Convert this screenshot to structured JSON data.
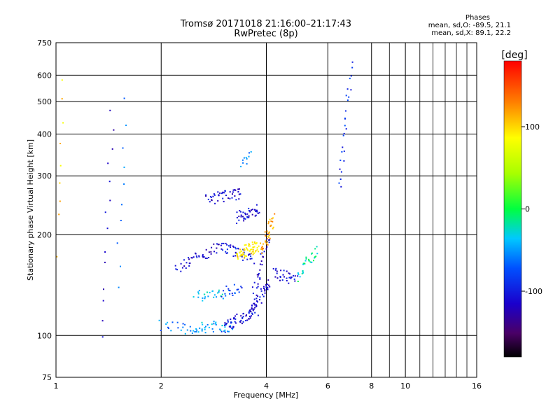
{
  "chart_data": {
    "type": "scatter",
    "title": "Tromsø 20171018 21:16:00–21:17:43",
    "subtitle": "RwPretec (8p)",
    "xlabel": "Frequency [MHz]",
    "ylabel": "Stationary phase Virtual Height [km]",
    "x_scale": "log",
    "y_scale": "log",
    "xlim": [
      1,
      16
    ],
    "ylim": [
      75,
      750
    ],
    "x_ticks": [
      "1",
      "2",
      "4",
      "6",
      "8",
      "10",
      "16"
    ],
    "y_ticks": [
      "75",
      "100",
      "200",
      "300",
      "400",
      "500",
      "600",
      "750"
    ],
    "grid": true,
    "legend_position": "top-right",
    "phase_legend": {
      "heading": "Phases",
      "line_o": "mean, sd,O: -89.5, 21.1",
      "line_x": "mean, sd,X:  89.1, 22.2"
    },
    "colorbar": {
      "label": "[deg]",
      "range": [
        -180,
        180
      ],
      "ticks": [
        "100",
        "0",
        "-100"
      ]
    },
    "traces": [
      {
        "f_range": [
          2.0,
          2.45
        ],
        "h": [
          108,
          103
        ],
        "phase": -60,
        "n": 18
      },
      {
        "f_range": [
          2.45,
          3.2
        ],
        "h": [
          106,
          106
        ],
        "phase": -45,
        "n": 40
      },
      {
        "f_range": [
          3.0,
          3.75
        ],
        "h": [
          106,
          118
        ],
        "phase": -105,
        "n": 55
      },
      {
        "f_range": [
          3.55,
          4.1
        ],
        "h": [
          115,
          145
        ],
        "phase": -110,
        "n": 45
      },
      {
        "f_range": [
          3.7,
          4.05
        ],
        "h": [
          135,
          200
        ],
        "phase": -115,
        "n": 30
      },
      {
        "f_range": [
          2.2,
          3.0
        ],
        "h": [
          160,
          185
        ],
        "phase": -115,
        "n": 45
      },
      {
        "f_range": [
          3.0,
          3.65
        ],
        "h": [
          185,
          170
        ],
        "phase": -100,
        "n": 40
      },
      {
        "f_range": [
          3.3,
          3.8
        ],
        "h": [
          175,
          185
        ],
        "phase": 95,
        "n": 60
      },
      {
        "f_range": [
          3.85,
          4.2
        ],
        "h": [
          175,
          225
        ],
        "phase": 115,
        "n": 40
      },
      {
        "f_range": [
          2.7,
          3.4
        ],
        "h": [
          255,
          265
        ],
        "phase": -110,
        "n": 45
      },
      {
        "f_range": [
          3.3,
          3.8
        ],
        "h": [
          225,
          240
        ],
        "phase": -110,
        "n": 40
      },
      {
        "f_range": [
          4.2,
          4.9
        ],
        "h": [
          155,
          145
        ],
        "phase": -110,
        "n": 30
      },
      {
        "f_range": [
          4.9,
          5.6
        ],
        "h": [
          150,
          180
        ],
        "phase": -20,
        "n": 30
      },
      {
        "f_range": [
          2.5,
          3.0
        ],
        "h": [
          132,
          133
        ],
        "phase": -35,
        "n": 25
      },
      {
        "f_range": [
          3.0,
          3.4
        ],
        "h": [
          135,
          138
        ],
        "phase": -80,
        "n": 20
      },
      {
        "f_range": [
          3.4,
          3.6
        ],
        "h": [
          330,
          345
        ],
        "phase": -60,
        "n": 10
      },
      {
        "f_range": [
          6.5,
          7.0
        ],
        "h": [
          270,
          640
        ],
        "phase": -90,
        "n": 26
      },
      {
        "f_range": [
          1.0,
          1.05
        ],
        "h": [
          170,
          560
        ],
        "phase": 100,
        "n": 10
      },
      {
        "f_range": [
          1.35,
          1.45
        ],
        "h": [
          100,
          470
        ],
        "phase": -110,
        "n": 14
      },
      {
        "f_range": [
          1.5,
          1.58
        ],
        "h": [
          140,
          500
        ],
        "phase": -60,
        "n": 10
      }
    ]
  }
}
